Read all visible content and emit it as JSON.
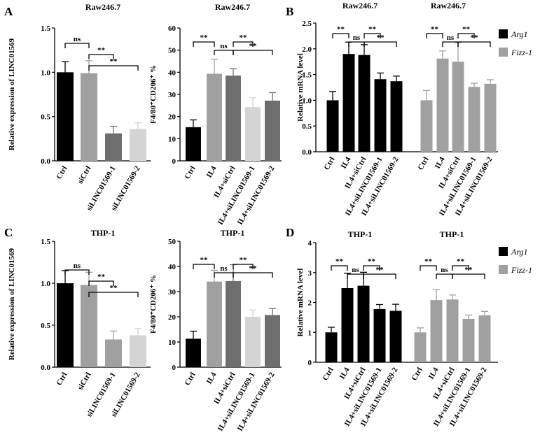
{
  "colors": {
    "black": "#000000",
    "dark_gray": "#6e6e6e",
    "mid_gray": "#a0a0a0",
    "light_gray": "#d4d4d4"
  },
  "chart_data": [
    {
      "id": "A1",
      "panel": "A",
      "type": "bar",
      "title": "Raw246.7",
      "ylabel": "Relative expression of LINC01569",
      "ylim": [
        0,
        1.5
      ],
      "yticks": [
        "0.0",
        "0.5",
        "1.0",
        "1.5"
      ],
      "categories": [
        "Ctrl",
        "siCtrl",
        "siLINC01569-1",
        "siLINC01569-2"
      ],
      "series": [
        {
          "name": "",
          "values": [
            1.0,
            0.99,
            0.31,
            0.36
          ],
          "errors": [
            0.12,
            0.14,
            0.08,
            0.07
          ],
          "colors": [
            "black",
            "mid_gray",
            "dark_gray",
            "light_gray"
          ]
        }
      ],
      "comparisons": [
        {
          "a": 0,
          "b": 1,
          "label": "ns",
          "level": 0
        },
        {
          "a": 1,
          "b": 2,
          "label": "**",
          "level": 1
        },
        {
          "a": 1,
          "b": 3,
          "label": "**",
          "level": 2
        }
      ]
    },
    {
      "id": "A2",
      "panel": "",
      "type": "bar",
      "title": "Raw246.7",
      "ylabel": "F4/80⁺CD206⁺ %",
      "ylim": [
        0,
        60
      ],
      "yticks": [
        "0",
        "10",
        "20",
        "30",
        "40",
        "50",
        "60"
      ],
      "categories": [
        "Ctrl",
        "IL4",
        "IL4+siCtrl",
        "IL4+siLINC01569-1",
        "IL4+siLINC01569-2"
      ],
      "series": [
        {
          "name": "",
          "values": [
            15.2,
            39.3,
            38.5,
            24.3,
            27.2
          ],
          "errors": [
            3.3,
            6.5,
            3.1,
            4.2,
            3.6
          ],
          "colors": [
            "black",
            "mid_gray",
            "dark_gray",
            "light_gray",
            "dark_gray"
          ]
        }
      ],
      "comparisons": [
        {
          "a": 0,
          "b": 1,
          "label": "**",
          "level": 0
        },
        {
          "a": 1,
          "b": 2,
          "label": "ns",
          "level": 1
        },
        {
          "a": 2,
          "b": 3,
          "label": "**",
          "level": 0
        },
        {
          "a": 2,
          "b": 4,
          "label": "**",
          "level": 1
        }
      ]
    },
    {
      "id": "B",
      "panel": "B",
      "type": "bar",
      "titles": [
        "Raw246.7",
        "Raw246.7"
      ],
      "ylabel": "Relative mRNA level",
      "ylim": [
        0,
        2.5
      ],
      "yticks": [
        "0.0",
        "0.5",
        "1.0",
        "1.5",
        "2.0",
        "2.5"
      ],
      "categories": [
        "Ctrl",
        "IL4",
        "IL4+siCtrl",
        "IL4+siLINC01569-1",
        "IL4+siLINC01569-2"
      ],
      "legend": [
        "Arg1",
        "Fizz-1"
      ],
      "series": [
        {
          "name": "Arg1",
          "color": "black",
          "values": [
            1.0,
            1.9,
            1.88,
            1.41,
            1.37
          ],
          "errors": [
            0.17,
            0.23,
            0.2,
            0.12,
            0.1
          ]
        },
        {
          "name": "Fizz-1",
          "color": "mid_gray",
          "values": [
            1.0,
            1.81,
            1.75,
            1.26,
            1.32
          ],
          "errors": [
            0.19,
            0.15,
            0.37,
            0.07,
            0.08
          ]
        }
      ],
      "comparisons": [
        {
          "a": 0,
          "b": 1,
          "label": "**",
          "level": 0
        },
        {
          "a": 1,
          "b": 2,
          "label": "ns",
          "level": 1
        },
        {
          "a": 2,
          "b": 3,
          "label": "**",
          "level": 0
        },
        {
          "a": 2,
          "b": 4,
          "label": "**",
          "level": 1
        }
      ]
    },
    {
      "id": "C1",
      "panel": "C",
      "type": "bar",
      "title": "THP-1",
      "ylabel": "Relative expression of LINC01569",
      "ylim": [
        0,
        1.5
      ],
      "yticks": [
        "0.0",
        "0.5",
        "1.0",
        "1.5"
      ],
      "categories": [
        "Ctrl",
        "siCtrl",
        "siLINC01569-1",
        "siLINC01569-2"
      ],
      "series": [
        {
          "name": "",
          "values": [
            1.0,
            0.98,
            0.33,
            0.38
          ],
          "errors": [
            0.15,
            0.15,
            0.1,
            0.08
          ],
          "colors": [
            "black",
            "mid_gray",
            "mid_gray",
            "light_gray"
          ]
        }
      ],
      "comparisons": [
        {
          "a": 0,
          "b": 1,
          "label": "ns",
          "level": 0
        },
        {
          "a": 1,
          "b": 2,
          "label": "**",
          "level": 1
        },
        {
          "a": 1,
          "b": 3,
          "label": "**",
          "level": 2
        }
      ]
    },
    {
      "id": "C2",
      "panel": "",
      "type": "bar",
      "title": "THP-1",
      "ylabel": "F4/80⁺CD206⁺ %",
      "ylim": [
        0,
        50
      ],
      "yticks": [
        "0",
        "10",
        "20",
        "30",
        "40",
        "50"
      ],
      "categories": [
        "Ctrl",
        "IL4",
        "IL4+siCtrl",
        "IL4+siLINC01569-1",
        "IL4+siLINC01569-2"
      ],
      "series": [
        {
          "name": "",
          "values": [
            11.3,
            34.0,
            34.2,
            20.0,
            20.7
          ],
          "errors": [
            3.0,
            4.5,
            6.5,
            2.7,
            2.6
          ],
          "colors": [
            "black",
            "mid_gray",
            "dark_gray",
            "light_gray",
            "dark_gray"
          ]
        }
      ],
      "comparisons": [
        {
          "a": 0,
          "b": 1,
          "label": "**",
          "level": 0
        },
        {
          "a": 1,
          "b": 2,
          "label": "ns",
          "level": 1
        },
        {
          "a": 2,
          "b": 3,
          "label": "**",
          "level": 0
        },
        {
          "a": 2,
          "b": 4,
          "label": "**",
          "level": 1
        }
      ]
    },
    {
      "id": "D",
      "panel": "D",
      "type": "bar",
      "titles": [
        "THP-1",
        "THP-1"
      ],
      "ylabel": "Relative mRNA level",
      "ylim": [
        0,
        4
      ],
      "yticks": [
        "0",
        "1",
        "2",
        "3",
        "4"
      ],
      "categories": [
        "Ctrl",
        "IL4",
        "IL4+siCtrl",
        "IL4+siLINC01569-1",
        "IL4+siLINC01569-2"
      ],
      "legend": [
        "Arg1",
        "Fizz-1"
      ],
      "series": [
        {
          "name": "Arg1",
          "color": "black",
          "values": [
            1.0,
            2.48,
            2.56,
            1.78,
            1.72
          ],
          "errors": [
            0.17,
            0.5,
            0.45,
            0.15,
            0.22
          ]
        },
        {
          "name": "Fizz-1",
          "color": "mid_gray",
          "values": [
            1.0,
            2.08,
            2.1,
            1.45,
            1.57
          ],
          "errors": [
            0.15,
            0.35,
            0.15,
            0.13,
            0.13
          ]
        }
      ],
      "comparisons": [
        {
          "a": 0,
          "b": 1,
          "label": "**",
          "level": 0
        },
        {
          "a": 1,
          "b": 2,
          "label": "ns",
          "level": 1
        },
        {
          "a": 2,
          "b": 3,
          "label": "**",
          "level": 0
        },
        {
          "a": 2,
          "b": 4,
          "label": "**",
          "level": 1
        }
      ]
    }
  ]
}
